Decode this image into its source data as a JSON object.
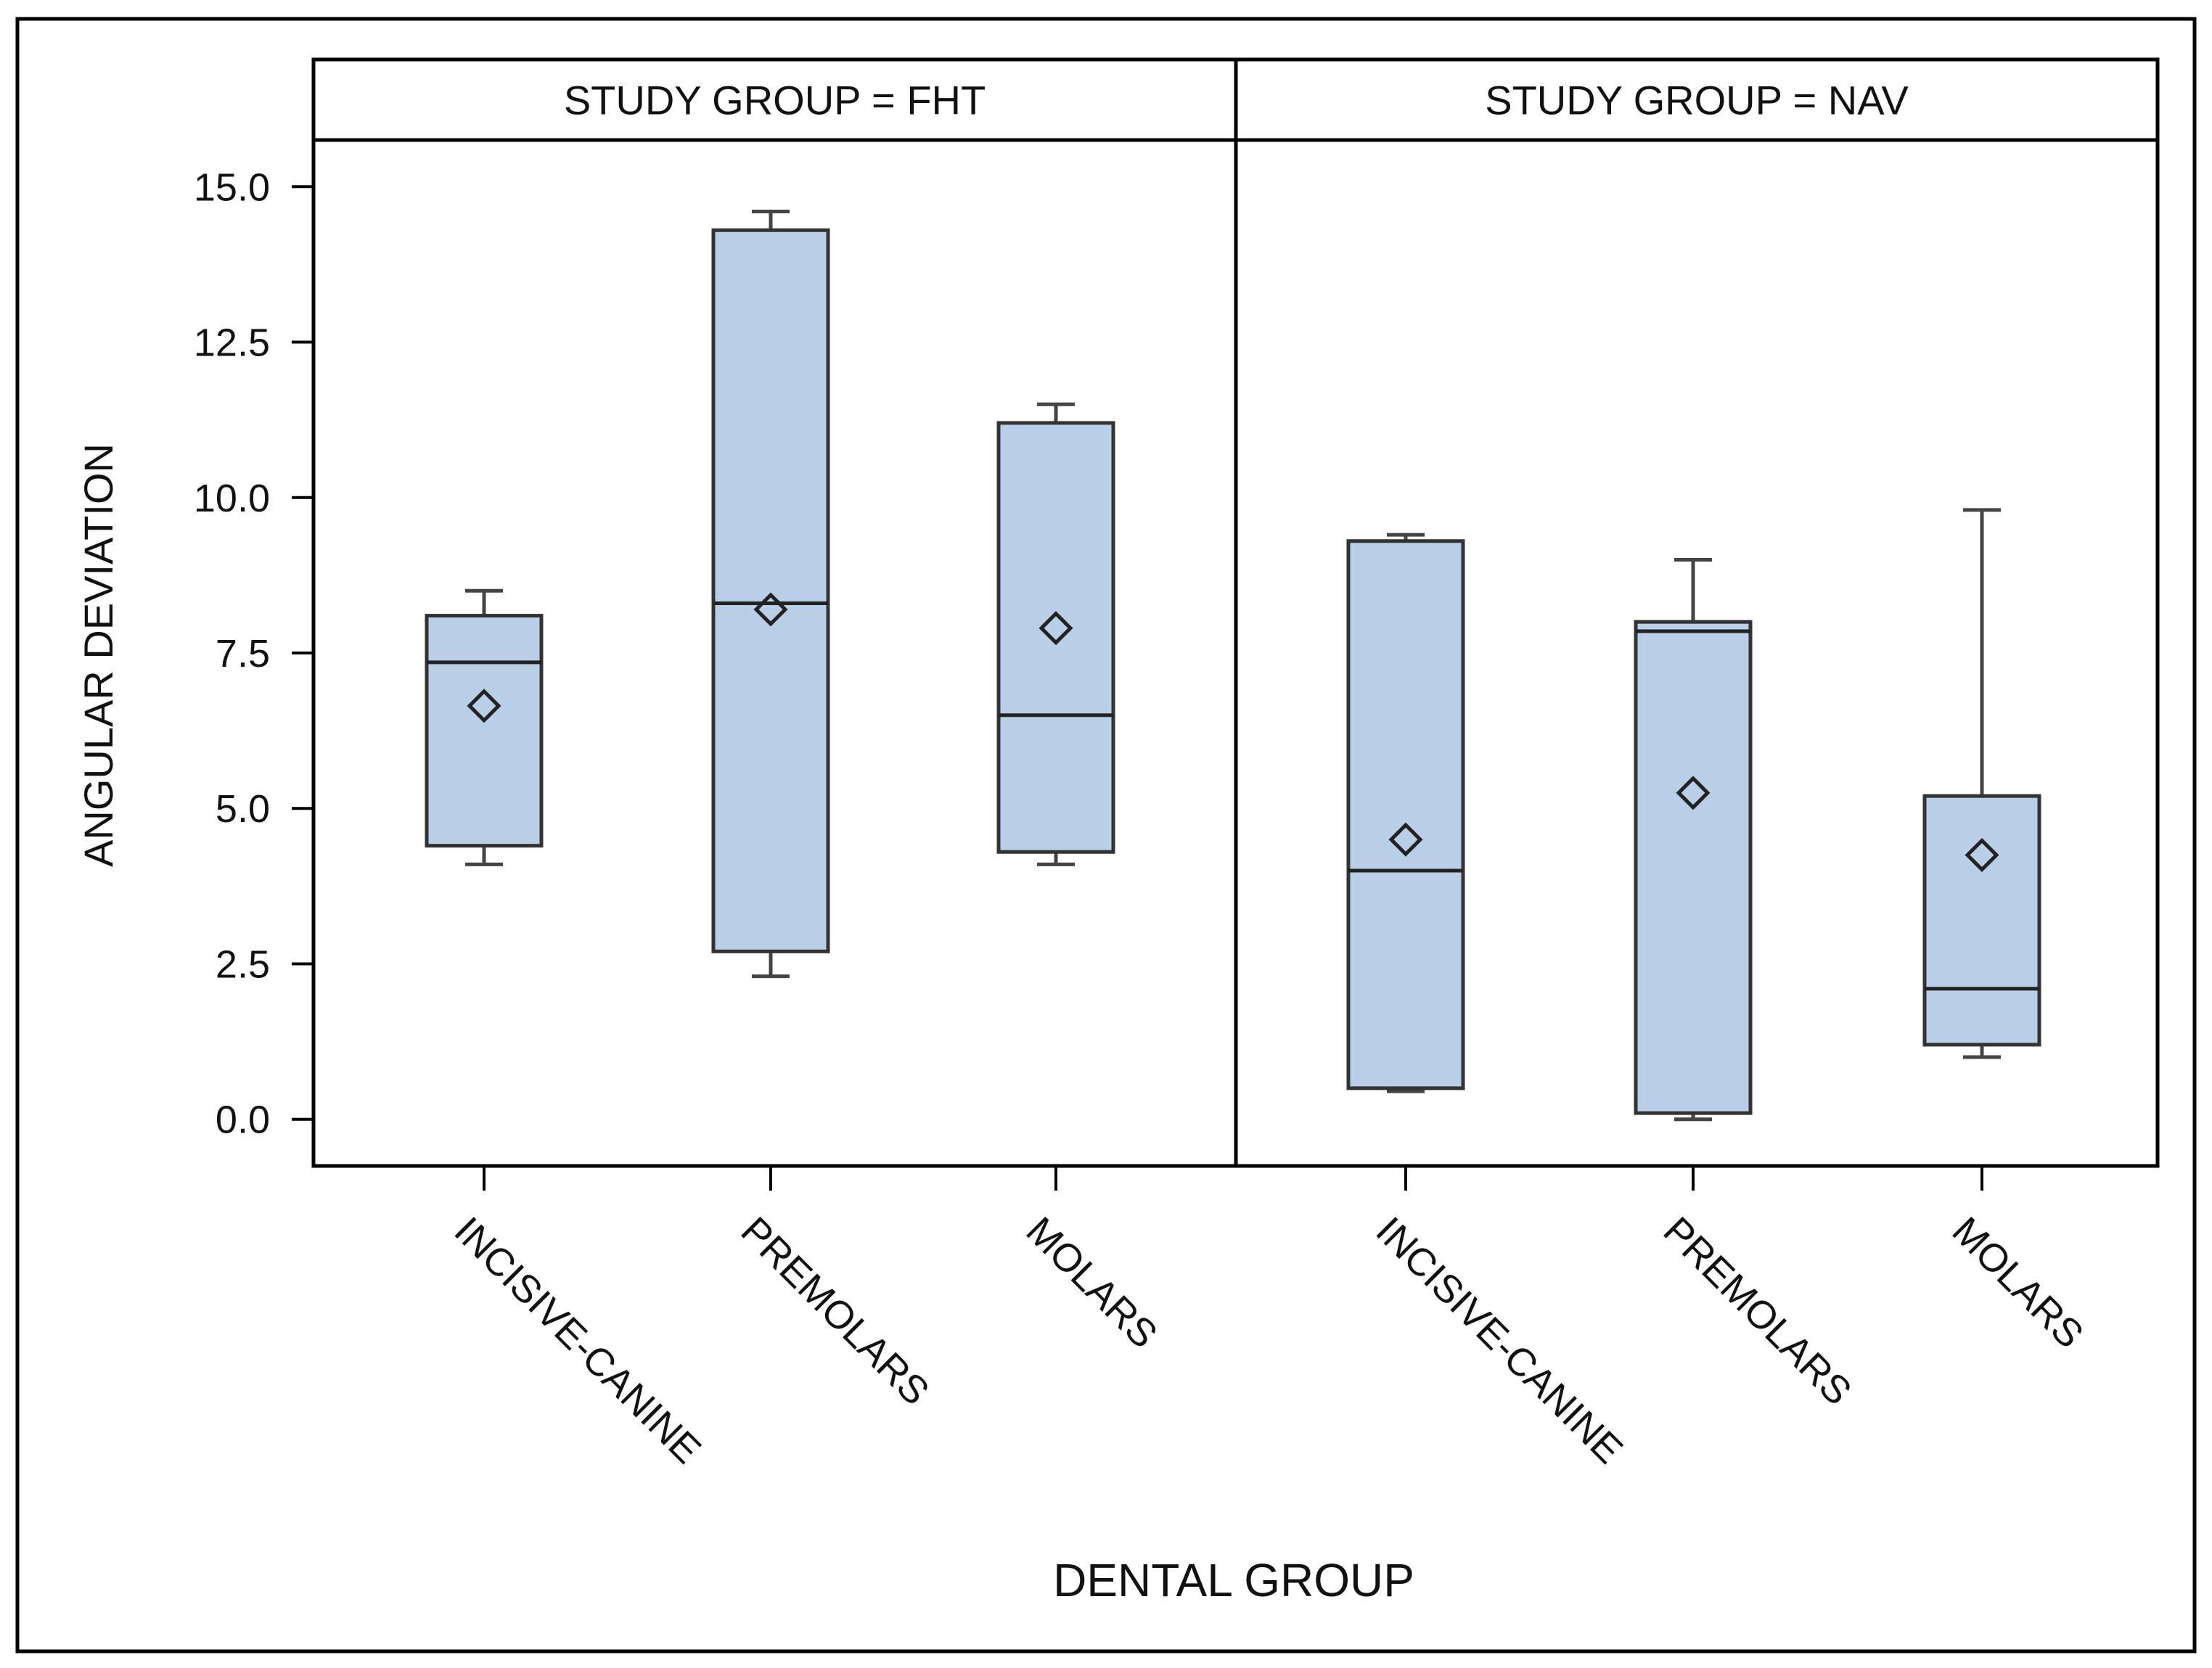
{
  "chart_data": {
    "type": "boxplot",
    "title": "",
    "xlabel": "DENTAL GROUP",
    "ylabel": "ANGULAR DEVIATION",
    "ylim": [
      -0.75,
      15.75
    ],
    "yticks": [
      "0.0",
      "2.5",
      "5.0",
      "7.5",
      "10.0",
      "12.5",
      "15.0"
    ],
    "ytick_values": [
      0,
      2.5,
      5,
      7.5,
      10,
      12.5,
      15
    ],
    "colors": {
      "box_fill": "#b9cfe8",
      "box_stroke": "#333333",
      "whisker": "#444444",
      "frame": "#000000"
    },
    "panels": [
      {
        "label": "STUDY GROUP = FHT",
        "categories": [
          "INCISIVE-CANINE",
          "PREMOLARS",
          "MOLARS"
        ],
        "boxes": [
          {
            "category": "INCISIVE-CANINE",
            "min": 4.1,
            "q1": 4.4,
            "median": 7.35,
            "q3": 8.1,
            "max": 8.5,
            "mean": 6.65
          },
          {
            "category": "PREMOLARS",
            "min": 2.3,
            "q1": 2.7,
            "median": 8.3,
            "q3": 14.3,
            "max": 14.6,
            "mean": 8.2
          },
          {
            "category": "MOLARS",
            "min": 4.1,
            "q1": 4.3,
            "median": 6.5,
            "q3": 11.2,
            "max": 11.5,
            "mean": 7.9
          }
        ]
      },
      {
        "label": "STUDY GROUP = NAV",
        "categories": [
          "INCISIVE-CANINE",
          "PREMOLARS",
          "MOLARS"
        ],
        "boxes": [
          {
            "category": "INCISIVE-CANINE",
            "min": 0.45,
            "q1": 0.5,
            "median": 4.0,
            "q3": 9.3,
            "max": 9.4,
            "mean": 4.5
          },
          {
            "category": "PREMOLARS",
            "min": 0.0,
            "q1": 0.1,
            "median": 7.85,
            "q3": 8.0,
            "max": 9.0,
            "mean": 5.25
          },
          {
            "category": "MOLARS",
            "min": 1.0,
            "q1": 1.2,
            "median": 2.1,
            "q3": 5.2,
            "max": 9.8,
            "mean": 4.25
          }
        ]
      }
    ]
  }
}
